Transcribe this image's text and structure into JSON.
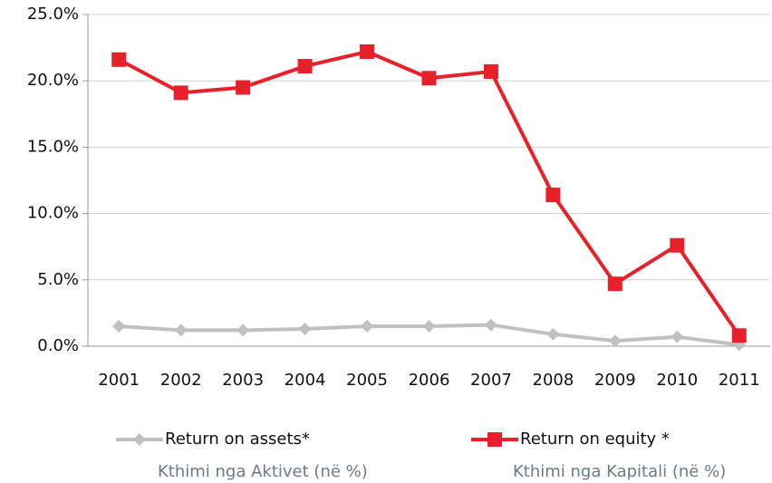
{
  "chart_data": {
    "type": "line",
    "categories": [
      "2001",
      "2002",
      "2003",
      "2004",
      "2005",
      "2006",
      "2007",
      "2008",
      "2009",
      "2010",
      "2011"
    ],
    "series": [
      {
        "name": "Return on assets*",
        "translation": "Kthimi nga Aktivet (në %)",
        "color": "#c0c0c0",
        "marker": "diamond",
        "values": [
          1.5,
          1.2,
          1.2,
          1.3,
          1.5,
          1.5,
          1.6,
          0.9,
          0.4,
          0.7,
          0.1
        ]
      },
      {
        "name": "Return on equity *",
        "translation": "Kthimi nga Kapitali (në %)",
        "color": "#e8202a",
        "marker": "square",
        "values": [
          21.6,
          19.1,
          19.5,
          21.1,
          22.2,
          20.2,
          20.7,
          11.4,
          4.7,
          7.6,
          0.8
        ]
      }
    ],
    "ylim": [
      0,
      25
    ],
    "yticks": [
      {
        "value": 0,
        "label": "0.0%"
      },
      {
        "value": 5,
        "label": "5.0%"
      },
      {
        "value": 10,
        "label": "10.0%"
      },
      {
        "value": 15,
        "label": "15.0%"
      },
      {
        "value": 20,
        "label": "20.0%"
      },
      {
        "value": 25,
        "label": "25.0%"
      }
    ],
    "grid": true
  }
}
